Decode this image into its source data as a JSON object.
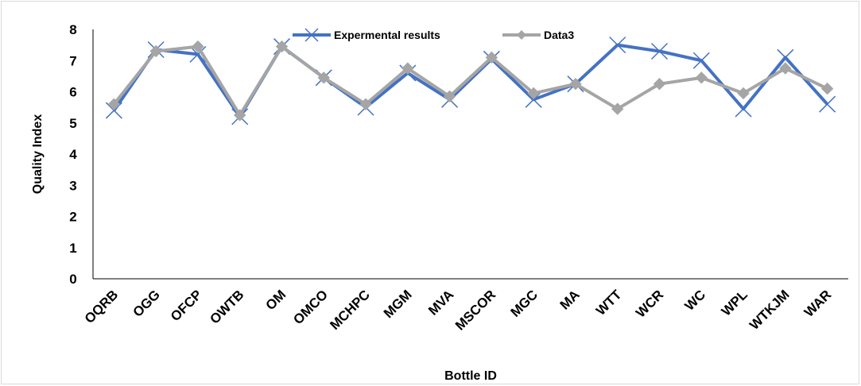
{
  "chart_data": {
    "type": "line",
    "title": "",
    "xlabel": "Bottle ID",
    "ylabel": "Quality Index",
    "ylim": [
      0,
      8
    ],
    "yticks": [
      "0",
      "1",
      "2",
      "3",
      "4",
      "5",
      "6",
      "7",
      "8"
    ],
    "categories": [
      "OQRB",
      "OGG",
      "OFCP",
      "OWTB",
      "OM",
      "OMCO",
      "MCHPC",
      "MGM",
      "MVA",
      "MSCOR",
      "MGC",
      "MA",
      "WTT",
      "WCR",
      "WC",
      "WPL",
      "WTKJM",
      "WAR"
    ],
    "grid": false,
    "legend_position": "top",
    "series": [
      {
        "name": "Expermental results",
        "color": "#4472c4",
        "marker": "x",
        "values": [
          5.4,
          7.35,
          7.2,
          5.2,
          7.45,
          6.45,
          5.5,
          6.6,
          5.75,
          7.05,
          5.75,
          6.25,
          7.5,
          7.3,
          7.0,
          5.45,
          7.1,
          5.6
        ]
      },
      {
        "name": "Data3",
        "color": "#a5a5a5",
        "marker": "diamond",
        "values": [
          5.6,
          7.3,
          7.45,
          5.25,
          7.45,
          6.45,
          5.6,
          6.75,
          5.85,
          7.1,
          5.95,
          6.25,
          5.45,
          6.25,
          6.45,
          5.95,
          6.75,
          6.1
        ]
      }
    ]
  }
}
